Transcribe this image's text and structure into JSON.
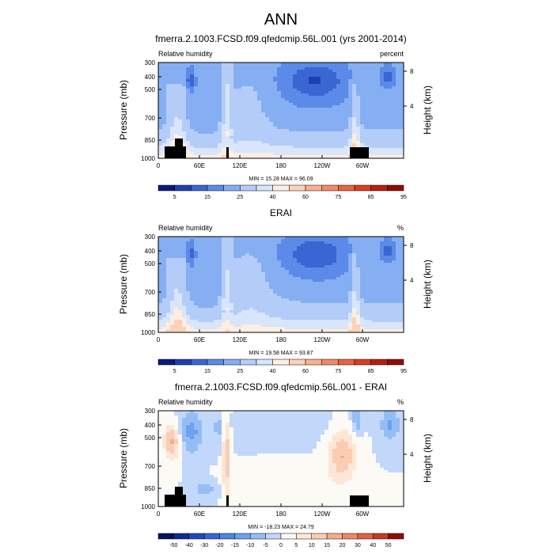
{
  "figure": {
    "title": "ANN"
  },
  "chart_data": [
    {
      "type": "heatmap",
      "title": "fmerra.2.1003.FCSD.f09.qfedcmip.56L.001 (yrs 2001-2014)",
      "left_label": "Relative humidity",
      "right_label": "percent",
      "xlabel": "",
      "ylabel": "Pressure (mb)",
      "ylabel_right": "Height (km)",
      "x_ticks": [
        "0",
        "60E",
        "120E",
        "180",
        "120W",
        "60W"
      ],
      "y_ticks": [
        "300",
        "400",
        "500",
        "700",
        "850",
        "1000"
      ],
      "y_ticks_right": [
        "8",
        "4"
      ],
      "stats": "MIN = 15.28  MAX = 96.09",
      "levels": [
        "5",
        "15",
        "25",
        "40",
        "60",
        "75",
        "85",
        "95"
      ],
      "colorbar_colors": [
        "#0a1a7a",
        "#1e3fb0",
        "#3a66d4",
        "#5b8ae8",
        "#86aef2",
        "#b3cdf8",
        "#d8e5fb",
        "#fdeee2",
        "#fbd2b8",
        "#f7b091",
        "#f08a68",
        "#e66446",
        "#d63e28",
        "#b81f12",
        "#8e0d06"
      ],
      "zlim": [
        0,
        100
      ],
      "has_topography": true
    },
    {
      "type": "heatmap",
      "title": "ERAI",
      "left_label": "Relative humidity",
      "right_label": "%",
      "xlabel": "",
      "ylabel": "Pressure (mb)",
      "ylabel_right": "Height (km)",
      "x_ticks": [
        "0",
        "60E",
        "120E",
        "180",
        "120W",
        "60W"
      ],
      "y_ticks": [
        "300",
        "400",
        "500",
        "700",
        "850",
        "1000"
      ],
      "y_ticks_right": [
        "8",
        "4"
      ],
      "stats": "MIN = 19.58  MAX = 93.87",
      "levels": [
        "5",
        "15",
        "25",
        "40",
        "60",
        "75",
        "85",
        "95"
      ],
      "colorbar_colors": [
        "#0a1a7a",
        "#1e3fb0",
        "#3a66d4",
        "#5b8ae8",
        "#86aef2",
        "#b3cdf8",
        "#d8e5fb",
        "#fdeee2",
        "#fbd2b8",
        "#f7b091",
        "#f08a68",
        "#e66446",
        "#d63e28",
        "#b81f12",
        "#8e0d06"
      ],
      "zlim": [
        0,
        100
      ],
      "has_topography": false
    },
    {
      "type": "heatmap",
      "title": "fmerra.2.1003.FCSD.f09.qfedcmip.56L.001 - ERAI",
      "left_label": "Relative humidity",
      "right_label": "%",
      "xlabel": "",
      "ylabel": "Pressure (mb)",
      "ylabel_right": "Height (km)",
      "x_ticks": [
        "0",
        "60E",
        "120E",
        "180",
        "120W",
        "60W"
      ],
      "y_ticks": [
        "300",
        "400",
        "500",
        "700",
        "850",
        "1000"
      ],
      "y_ticks_right": [
        "8",
        "4"
      ],
      "stats": "MIN = -18.23  MAX = 24.79",
      "levels": [
        "-50",
        "-40",
        "-30",
        "-20",
        "-15",
        "-10",
        "-5",
        "0",
        "5",
        "10",
        "15",
        "20",
        "30",
        "40",
        "50"
      ],
      "colorbar_colors": [
        "#08125e",
        "#0d2a9a",
        "#1d47c4",
        "#3466d8",
        "#4f84e4",
        "#6fa0ee",
        "#95bdf5",
        "#c2d8fa",
        "#fcfaf5",
        "#fde6d6",
        "#facdb2",
        "#f5ad8c",
        "#ee8a66",
        "#e06341",
        "#c93a22",
        "#8e0d06"
      ],
      "zlim": [
        -50,
        50
      ],
      "has_topography": true
    }
  ]
}
